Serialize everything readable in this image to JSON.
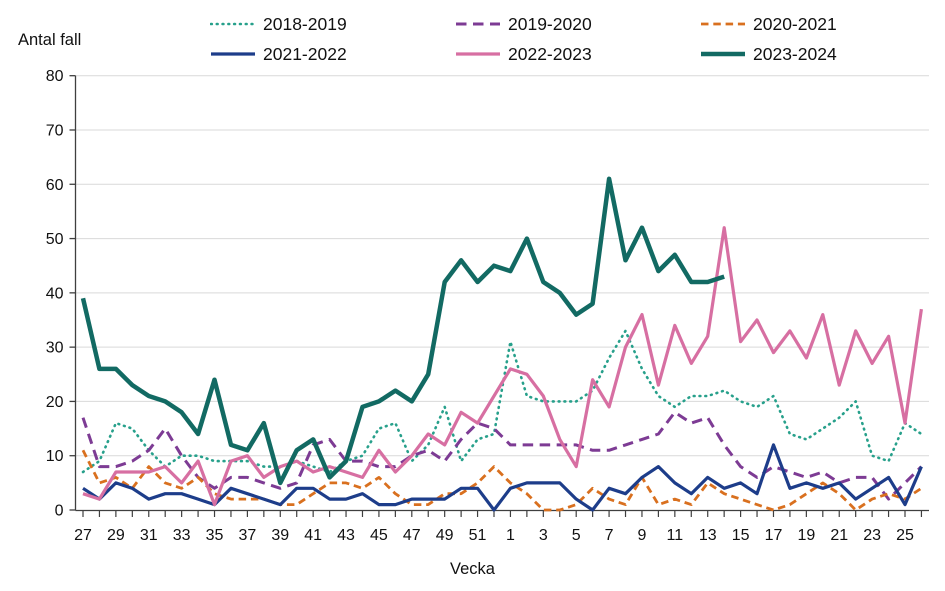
{
  "chart_data": {
    "type": "line",
    "title": "",
    "ylabel": "Antal fall",
    "xlabel": "Vecka",
    "ylim": [
      0,
      80
    ],
    "yticks": [
      0,
      10,
      20,
      30,
      40,
      50,
      60,
      70,
      80
    ],
    "grid": "horizontal",
    "legend_position": "top",
    "weeks": [
      27,
      28,
      29,
      30,
      31,
      32,
      33,
      34,
      35,
      36,
      37,
      38,
      39,
      40,
      41,
      42,
      43,
      44,
      45,
      46,
      47,
      48,
      49,
      50,
      51,
      52,
      1,
      2,
      3,
      4,
      5,
      6,
      7,
      8,
      9,
      10,
      11,
      12,
      13,
      14,
      15,
      16,
      17,
      18,
      19,
      20,
      21,
      22,
      23,
      24,
      25,
      26
    ],
    "xtick_labels": [
      "27",
      "29",
      "31",
      "33",
      "35",
      "37",
      "39",
      "41",
      "43",
      "45",
      "47",
      "49",
      "51",
      "1",
      "3",
      "5",
      "7",
      "9",
      "11",
      "13",
      "15",
      "17",
      "19",
      "21",
      "23",
      "25"
    ],
    "colors": {
      "grid": "#d9d9d9",
      "axis": "#3f3f3f",
      "text": "#111111"
    },
    "series": [
      {
        "name": "2018-2019",
        "color": "#27a08b",
        "style": "dotted",
        "width": 2.6,
        "values": [
          7,
          9,
          16,
          15,
          11,
          8,
          10,
          10,
          9,
          9,
          9,
          8,
          8,
          9,
          8,
          7,
          9,
          10,
          15,
          16,
          9,
          12,
          19,
          9,
          13,
          14,
          31,
          21,
          20,
          20,
          20,
          22,
          28,
          33,
          26,
          21,
          19,
          21,
          21,
          22,
          20,
          19,
          21,
          14,
          13,
          15,
          17,
          20,
          10,
          9,
          16,
          14
        ]
      },
      {
        "name": "2019-2020",
        "color": "#7d3b94",
        "style": "dashed",
        "width": 3,
        "values": [
          17,
          8,
          8,
          9,
          11,
          15,
          10,
          6,
          4,
          6,
          6,
          5,
          4,
          5,
          12,
          13,
          9,
          9,
          8,
          8,
          10,
          11,
          9,
          13,
          16,
          15,
          12,
          12,
          12,
          12,
          12,
          11,
          11,
          12,
          13,
          14,
          18,
          16,
          17,
          12,
          8,
          6,
          8,
          7,
          6,
          7,
          5,
          6,
          6,
          2,
          5,
          8
        ]
      },
      {
        "name": "2020-2021",
        "color": "#d9701f",
        "style": "dashed-short",
        "width": 2.8,
        "values": [
          11,
          5,
          6,
          4,
          8,
          5,
          4,
          6,
          3,
          2,
          2,
          2,
          1,
          1,
          3,
          5,
          5,
          4,
          6,
          3,
          1,
          1,
          3,
          3,
          5,
          8,
          5,
          3,
          0,
          0,
          1,
          4,
          2,
          1,
          6,
          1,
          2,
          1,
          5,
          3,
          2,
          1,
          0,
          1,
          3,
          5,
          3,
          0,
          2,
          3,
          2,
          4
        ]
      },
      {
        "name": "2021-2022",
        "color": "#1d3d8a",
        "style": "solid",
        "width": 3.2,
        "values": [
          4,
          2,
          5,
          4,
          2,
          3,
          3,
          2,
          1,
          4,
          3,
          2,
          1,
          4,
          4,
          2,
          2,
          3,
          1,
          1,
          2,
          2,
          2,
          4,
          4,
          0,
          4,
          5,
          5,
          5,
          2,
          0,
          4,
          3,
          6,
          8,
          5,
          3,
          6,
          4,
          5,
          3,
          12,
          4,
          5,
          4,
          5,
          2,
          4,
          6,
          1,
          8
        ]
      },
      {
        "name": "2022-2023",
        "color": "#d76fa2",
        "style": "solid",
        "width": 3.2,
        "values": [
          3,
          2,
          7,
          7,
          7,
          8,
          5,
          9,
          1,
          9,
          10,
          6,
          8,
          9,
          7,
          8,
          7,
          6,
          11,
          7,
          10,
          14,
          12,
          18,
          16,
          21,
          26,
          25,
          21,
          13,
          8,
          24,
          19,
          30,
          36,
          23,
          34,
          27,
          32,
          52,
          31,
          35,
          29,
          33,
          28,
          36,
          23,
          33,
          27,
          32,
          16,
          37
        ]
      },
      {
        "name": "2023-2024",
        "color": "#126a63",
        "style": "solid",
        "width": 4.5,
        "values": [
          39,
          26,
          26,
          23,
          21,
          20,
          18,
          14,
          24,
          12,
          11,
          16,
          5,
          11,
          13,
          6,
          9,
          19,
          20,
          22,
          20,
          25,
          42,
          46,
          42,
          45,
          44,
          50,
          42,
          40,
          36,
          38,
          61,
          46,
          52,
          44,
          47,
          42,
          42,
          43,
          null,
          null,
          null,
          null,
          null,
          null,
          null,
          null,
          null,
          null,
          null,
          null
        ]
      }
    ]
  }
}
